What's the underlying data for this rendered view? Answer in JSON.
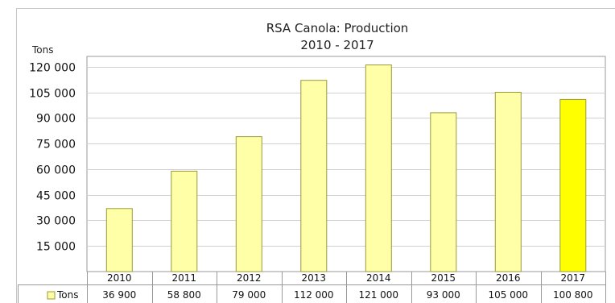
{
  "chart_data": {
    "type": "bar",
    "title": "RSA Canola: Production",
    "subtitle": "2010 - 2017",
    "xlabel": "",
    "ylabel": "Tons",
    "categories": [
      "2010",
      "2011",
      "2012",
      "2013",
      "2014",
      "2015",
      "2016",
      "2017"
    ],
    "series": [
      {
        "name": "Tons",
        "values": [
          36900,
          58800,
          79000,
          112000,
          121000,
          93000,
          105000,
          100800
        ],
        "value_labels": [
          "36 900",
          "58 800",
          "79 000",
          "112 000",
          "121 000",
          "93 000",
          "105 000",
          "100 800"
        ]
      }
    ],
    "ylim": [
      0,
      126000
    ],
    "yticks": [
      15000,
      30000,
      45000,
      60000,
      75000,
      90000,
      105000,
      120000
    ],
    "ytick_labels": [
      "15 000",
      "30 000",
      "45 000",
      "60 000",
      "75 000",
      "90 000",
      "105 000",
      "120 000"
    ],
    "grid": true,
    "legend": "data-table-left",
    "colors": {
      "bar": "#ffffa8",
      "bar_highlight": "#ffff00",
      "bar_stroke": "#9a9a3a",
      "grid": "#d0d0d0",
      "axis": "#9a9a9a",
      "legend_swatch": "#ffffa8"
    },
    "highlight_index": 7
  }
}
